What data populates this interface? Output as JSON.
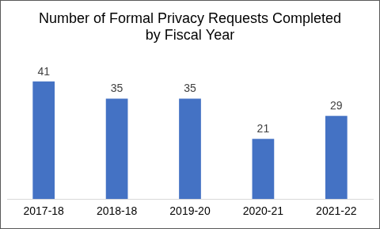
{
  "chart_data": {
    "type": "bar",
    "title": "Number of Formal Privacy Requests Completed\nby Fiscal Year",
    "categories": [
      "2017-18",
      "2018-18",
      "2019-20",
      "2020-21",
      "2021-22"
    ],
    "values": [
      41,
      35,
      35,
      21,
      29
    ],
    "color": "#4472c4",
    "ylim": [
      0,
      50
    ],
    "yticks": [
      0,
      10,
      20,
      30,
      40,
      50
    ],
    "grid": false,
    "data_labels": true,
    "tick_labels": "x"
  }
}
